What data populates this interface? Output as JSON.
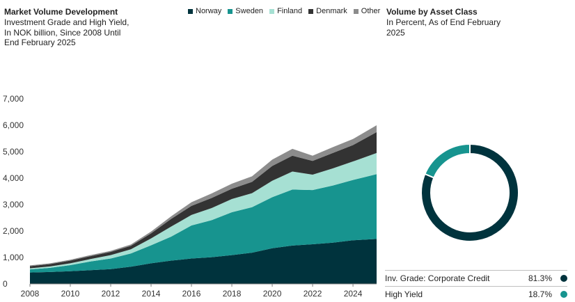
{
  "left_panel": {
    "title": "Market Volume Development",
    "subtitle": "Investment Grade and High Yield, In NOK billion, Since 2008 Until End February 2025"
  },
  "right_panel": {
    "title": "Volume by Asset Class",
    "subtitle": "In Percent, As of End February 2025"
  },
  "colors": {
    "norway": "#00333d",
    "sweden": "#17948f",
    "finland": "#a6e0d3",
    "denmark": "#333333",
    "other": "#8c8c8c",
    "inv_grade": "#00333d",
    "high_yield": "#17948f"
  },
  "chart_data": [
    {
      "type": "area",
      "stacked": true,
      "x": [
        2008,
        2009,
        2010,
        2011,
        2012,
        2013,
        2014,
        2015,
        2016,
        2017,
        2018,
        2019,
        2020,
        2021,
        2022,
        2023,
        2024,
        2025.17
      ],
      "series": [
        {
          "name": "Norway",
          "values": [
            430,
            450,
            480,
            520,
            560,
            650,
            780,
            880,
            960,
            1010,
            1090,
            1180,
            1350,
            1450,
            1500,
            1560,
            1650,
            1700
          ]
        },
        {
          "name": "Sweden",
          "values": [
            120,
            160,
            230,
            330,
            400,
            500,
            680,
            910,
            1250,
            1400,
            1620,
            1720,
            1930,
            2120,
            2050,
            2160,
            2280,
            2450
          ]
        },
        {
          "name": "Finland",
          "values": [
            40,
            50,
            70,
            90,
            130,
            160,
            260,
            380,
            400,
            460,
            500,
            530,
            620,
            680,
            580,
            650,
            700,
            800
          ]
        },
        {
          "name": "Denmark",
          "values": [
            80,
            90,
            100,
            110,
            120,
            130,
            190,
            290,
            340,
            380,
            390,
            430,
            560,
            600,
            520,
            580,
            620,
            790
          ]
        },
        {
          "name": "Other",
          "values": [
            30,
            30,
            35,
            40,
            40,
            50,
            70,
            100,
            140,
            170,
            190,
            210,
            240,
            260,
            200,
            220,
            230,
            260
          ]
        }
      ],
      "ylim": [
        0,
        7000
      ],
      "yticks": [
        "0",
        "1,000",
        "2,000",
        "3,000",
        "4,000",
        "5,000",
        "6,000",
        "7,000"
      ],
      "xticks": [
        "2008",
        "2010",
        "2012",
        "2014",
        "2016",
        "2018",
        "2020",
        "2022",
        "2024"
      ],
      "legend": [
        "Norway",
        "Sweden",
        "Finland",
        "Denmark",
        "Other"
      ],
      "legend_position": "top"
    },
    {
      "type": "pie",
      "donut": true,
      "slices": [
        {
          "label": "Inv. Grade: Corporate Credit",
          "value": 81.3,
          "value_label": "81.3%"
        },
        {
          "label": "High Yield",
          "value": 18.7,
          "value_label": "18.7%"
        }
      ]
    }
  ]
}
